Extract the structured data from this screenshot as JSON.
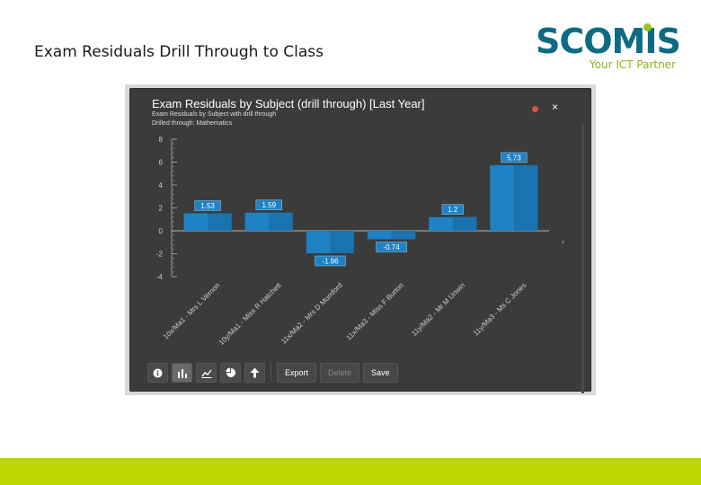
{
  "page": {
    "title": "Exam Residuals Drill Through to Class"
  },
  "logo": {
    "word": "SCOMIS",
    "tagline": "Your ICT Partner"
  },
  "colors": {
    "bar": "#1f82c4",
    "bar_dark": "#155f94",
    "label_bg": "#1f82c4",
    "panel": "#3b3b3b",
    "accent_bar": "#bdd600"
  },
  "chart_panel": {
    "title": "Exam Residuals by Subject (drill through) [Last Year]",
    "subtitle": "Exam Residuals by Subject with drill through",
    "drilled": "Drilled through: Mathematics",
    "close_symbol": "×"
  },
  "toolbar": {
    "icons": [
      "info-icon",
      "bar-chart-icon",
      "line-chart-icon",
      "pie-chart-icon",
      "up-arrow-icon"
    ],
    "export_label": "Export",
    "delete_label": "Delete",
    "save_label": "Save"
  },
  "chart_data": {
    "type": "bar",
    "categories": [
      "10x/Ma1 - Mrs L Vernon",
      "10y/Ma1 - Miss R Hatchett",
      "11x/Ma2 - Mrs D Mumford",
      "11x/Ma3 - Miss F Burton",
      "11y/Ma2 - Mr M Unwin",
      "11y/Ma3 - Ms C Jones"
    ],
    "values": [
      1.53,
      1.59,
      -1.96,
      -0.74,
      1.2,
      5.73
    ],
    "value_labels": [
      "1.53",
      "1.59",
      "-1.96",
      "-0.74",
      "1.2",
      "5.73"
    ],
    "ylim": [
      -4,
      8
    ],
    "yticks": [
      8,
      6,
      4,
      2,
      0,
      -2,
      -4
    ],
    "ytick_labels": [
      "8",
      "6",
      "4",
      "2",
      "0",
      "-2",
      "-4"
    ],
    "grid": false,
    "legend": "none"
  }
}
